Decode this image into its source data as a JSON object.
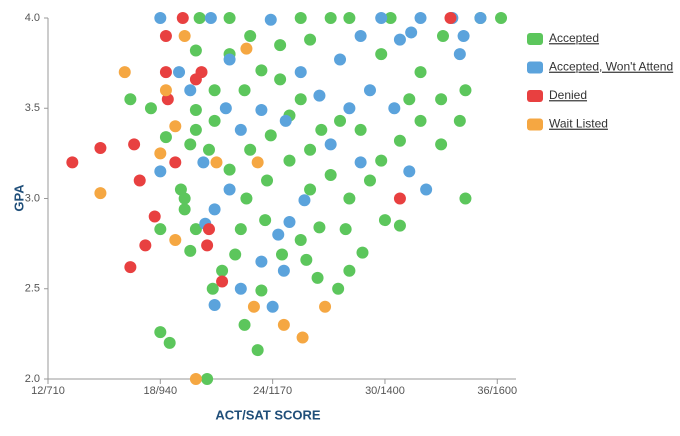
{
  "chart_data": {
    "type": "scatter",
    "x_label": "ACT/SAT SCORE",
    "y_label": "GPA",
    "xlim": [
      12,
      37
    ],
    "ylim": [
      2,
      4
    ],
    "xticks": [
      {
        "value": 12,
        "label": "12/710"
      },
      {
        "value": 18,
        "label": "18/940"
      },
      {
        "value": 24,
        "label": "24/1170"
      },
      {
        "value": 30,
        "label": "30/1400"
      },
      {
        "value": 36,
        "label": "36/1600"
      }
    ],
    "yticks": [
      {
        "value": 2,
        "label": "2.0"
      },
      2.5,
      {
        "value": 3,
        "label": "3.0"
      },
      3.5,
      {
        "value": 4,
        "label": "4.0"
      }
    ],
    "grid": false,
    "legend": "right",
    "series": [
      {
        "name": "Accepted",
        "color": "#5cc65c",
        "x": [
          16.4,
          17.5,
          18.3,
          18.0,
          18.5,
          18.0,
          19.3,
          19.3,
          19.9,
          19.6,
          20.5,
          20.8,
          21.3,
          22.0,
          22.5,
          23.2,
          23.4,
          24.5,
          25.5,
          26.4,
          27.5,
          26.5,
          27.9,
          28.8,
          30.0,
          30.8,
          34.3,
          34.0,
          34.3,
          33.1,
          36.2,
          35.1,
          20.1,
          21.7,
          25.5,
          27.1,
          28.1,
          30.3,
          22.8,
          24.4,
          26.0,
          29.8,
          31.9,
          33.0,
          31.9,
          30.8,
          29.8,
          29.2,
          28.1,
          27.1,
          26.0,
          24.9,
          23.7,
          22.6,
          21.7,
          20.6,
          19.9,
          20.9,
          22.5,
          23.4,
          24.4,
          25.5,
          26.6,
          27.6,
          28.7,
          22.8,
          23.9,
          24.9,
          26.0,
          19.9,
          19.6,
          20.9,
          19.1,
          22.3,
          23.6,
          25.8,
          28.1,
          21.7,
          19.9,
          33.0,
          31.3
        ],
        "y": [
          3.55,
          3.5,
          3.34,
          2.83,
          2.2,
          2.26,
          3.0,
          2.94,
          2.83,
          2.71,
          2.0,
          2.5,
          2.6,
          2.69,
          2.3,
          2.16,
          2.49,
          2.69,
          2.77,
          2.56,
          2.5,
          2.84,
          2.83,
          2.7,
          2.88,
          2.85,
          3.0,
          3.43,
          3.6,
          3.9,
          4.0,
          4.0,
          4.0,
          4.0,
          4.0,
          4.0,
          4.0,
          4.0,
          3.9,
          3.85,
          3.88,
          3.8,
          3.7,
          3.55,
          3.43,
          3.32,
          3.21,
          3.1,
          3.0,
          3.13,
          3.05,
          3.21,
          3.1,
          3.0,
          3.16,
          3.27,
          3.38,
          3.43,
          3.6,
          3.71,
          3.66,
          3.55,
          3.38,
          3.43,
          3.38,
          3.27,
          3.35,
          3.46,
          3.27,
          3.49,
          3.3,
          3.6,
          3.05,
          2.83,
          2.88,
          2.66,
          2.6,
          3.8,
          3.82,
          3.3,
          3.55
        ]
      },
      {
        "name": "Accepted, Won't Attend",
        "color": "#5ba3dc",
        "x": [
          18.0,
          19.0,
          19.6,
          18.0,
          20.3,
          20.9,
          20.4,
          20.9,
          22.3,
          24.0,
          23.4,
          24.6,
          24.3,
          21.7,
          22.3,
          23.4,
          24.7,
          25.5,
          26.5,
          27.6,
          28.7,
          29.8,
          30.8,
          31.9,
          31.4,
          33.6,
          34.2,
          35.1,
          34.0,
          31.3,
          32.2,
          28.7,
          28.1,
          23.9,
          21.7,
          21.5,
          25.7,
          24.9,
          27.1,
          29.2,
          30.5,
          20.7
        ],
        "y": [
          4.0,
          3.7,
          3.6,
          3.15,
          3.2,
          2.94,
          2.86,
          2.41,
          2.5,
          2.4,
          2.65,
          2.6,
          2.8,
          3.05,
          3.38,
          3.49,
          3.43,
          3.7,
          3.57,
          3.77,
          3.9,
          4.0,
          3.88,
          4.0,
          3.92,
          4.0,
          3.9,
          4.0,
          3.8,
          3.15,
          3.05,
          3.2,
          3.5,
          3.99,
          3.77,
          3.5,
          2.99,
          2.87,
          3.3,
          3.6,
          3.5,
          4.0
        ]
      },
      {
        "name": "Denied",
        "color": "#e84040",
        "x": [
          13.3,
          14.8,
          16.6,
          16.9,
          17.7,
          17.2,
          16.4,
          18.4,
          18.3,
          18.3,
          19.2,
          19.9,
          20.5,
          20.6,
          21.3,
          18.8,
          30.8,
          33.5,
          20.2
        ],
        "y": [
          3.2,
          3.28,
          3.3,
          3.1,
          2.9,
          2.74,
          2.62,
          3.55,
          3.7,
          3.9,
          4.0,
          3.66,
          2.74,
          2.83,
          2.54,
          3.2,
          3.0,
          4.0,
          3.7
        ]
      },
      {
        "name": "Wait Listed",
        "color": "#f5a742",
        "x": [
          16.1,
          14.8,
          18.0,
          18.8,
          18.8,
          19.9,
          19.3,
          23.0,
          24.6,
          25.6,
          26.8,
          23.2,
          22.6,
          21.0,
          18.3
        ],
        "y": [
          3.7,
          3.03,
          3.25,
          2.77,
          3.4,
          2.0,
          3.9,
          2.4,
          2.3,
          2.23,
          2.4,
          3.2,
          3.83,
          3.2,
          3.6
        ]
      }
    ]
  }
}
